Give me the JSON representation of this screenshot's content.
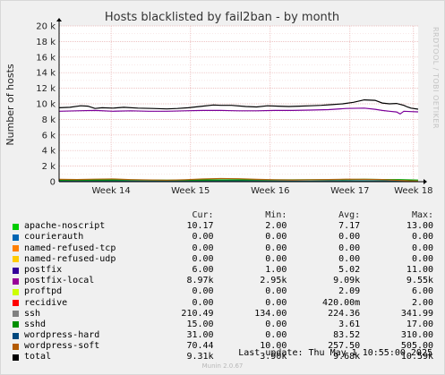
{
  "chart_data": {
    "type": "line",
    "title": "Hosts blacklisted by fail2ban - by month",
    "ylabel": "Number of hosts",
    "watermark": "RRDTOOL / TOBI OETIKER",
    "ylim": [
      0,
      20000
    ],
    "yticks": [
      0,
      2000,
      4000,
      6000,
      8000,
      10000,
      12000,
      14000,
      16000,
      18000,
      20000
    ],
    "ytick_labels": [
      "0",
      "2 k",
      "4 k",
      "6 k",
      "8 k",
      "10 k",
      "12 k",
      "14 k",
      "16 k",
      "18 k",
      "20 k"
    ],
    "xlim": [
      0,
      1
    ],
    "xticks": [
      {
        "label": "Week 14",
        "pos": 0.145
      },
      {
        "label": "Week 15",
        "pos": 0.366
      },
      {
        "label": "Week 16",
        "pos": 0.588
      },
      {
        "label": "Week 17",
        "pos": 0.81
      },
      {
        "label": "Week 18",
        "pos": 0.987
      }
    ],
    "grid": true,
    "series": [
      {
        "name": "total",
        "color": "#000000",
        "x": [
          0,
          0.03,
          0.06,
          0.08,
          0.1,
          0.12,
          0.15,
          0.18,
          0.22,
          0.26,
          0.3,
          0.33,
          0.36,
          0.4,
          0.43,
          0.45,
          0.48,
          0.52,
          0.55,
          0.58,
          0.61,
          0.64,
          0.67,
          0.7,
          0.73,
          0.76,
          0.79,
          0.82,
          0.85,
          0.88,
          0.9,
          0.92,
          0.94,
          0.96,
          0.97,
          0.98,
          1.0
        ],
        "y": [
          9500,
          9550,
          9750,
          9700,
          9400,
          9500,
          9450,
          9550,
          9450,
          9400,
          9350,
          9400,
          9500,
          9700,
          9850,
          9800,
          9800,
          9650,
          9600,
          9750,
          9700,
          9650,
          9700,
          9750,
          9800,
          9900,
          10000,
          10200,
          10500,
          10450,
          10100,
          10000,
          10050,
          9800,
          9600,
          9450,
          9310
        ]
      },
      {
        "name": "postfix-local",
        "color": "#7b0099",
        "x": [
          0,
          0.05,
          0.1,
          0.15,
          0.2,
          0.25,
          0.3,
          0.35,
          0.4,
          0.45,
          0.5,
          0.55,
          0.6,
          0.65,
          0.7,
          0.75,
          0.8,
          0.85,
          0.88,
          0.9,
          0.92,
          0.94,
          0.95,
          0.96,
          0.98,
          1.0
        ],
        "y": [
          9050,
          9100,
          9150,
          9050,
          9100,
          9050,
          9050,
          9100,
          9150,
          9150,
          9100,
          9100,
          9150,
          9150,
          9200,
          9250,
          9400,
          9450,
          9300,
          9150,
          9050,
          8950,
          8700,
          9050,
          9000,
          8970
        ]
      },
      {
        "name": "wordpress-soft",
        "color": "#b0630c",
        "x": [
          0,
          0.05,
          0.1,
          0.15,
          0.2,
          0.3,
          0.35,
          0.4,
          0.45,
          0.5,
          0.55,
          0.6,
          0.65,
          0.7,
          0.75,
          0.8,
          0.85,
          0.9,
          0.95,
          1.0
        ],
        "y": [
          300,
          280,
          320,
          350,
          270,
          200,
          250,
          350,
          400,
          380,
          300,
          250,
          220,
          250,
          280,
          320,
          300,
          280,
          150,
          70
        ]
      },
      {
        "name": "ssh",
        "color": "#00a000",
        "x": [
          0,
          0.1,
          0.2,
          0.3,
          0.4,
          0.5,
          0.6,
          0.7,
          0.8,
          0.85,
          0.9,
          0.95,
          1.0
        ],
        "y": [
          200,
          220,
          230,
          200,
          220,
          240,
          230,
          250,
          260,
          300,
          280,
          260,
          210
        ]
      },
      {
        "name": "wordpress-hard",
        "color": "#0d5d6e",
        "x": [
          0,
          0.1,
          0.2,
          0.3,
          0.4,
          0.5,
          0.6,
          0.7,
          0.8,
          0.9,
          1.0
        ],
        "y": [
          100,
          110,
          90,
          80,
          120,
          100,
          90,
          80,
          110,
          100,
          31
        ]
      }
    ]
  },
  "legend": {
    "headers": [
      "Cur:",
      "Min:",
      "Avg:",
      "Max:"
    ],
    "rows": [
      {
        "name": "apache-noscript",
        "color": "#00cc00",
        "cur": "10.17",
        "min": "2.00",
        "avg": "7.17",
        "max": "13.00"
      },
      {
        "name": "courierauth",
        "color": "#0066b3",
        "cur": "0.00",
        "min": "0.00",
        "avg": "0.00",
        "max": "0.00"
      },
      {
        "name": "named-refused-tcp",
        "color": "#ff8000",
        "cur": "0.00",
        "min": "0.00",
        "avg": "0.00",
        "max": "0.00"
      },
      {
        "name": "named-refused-udp",
        "color": "#ffcc00",
        "cur": "0.00",
        "min": "0.00",
        "avg": "0.00",
        "max": "0.00"
      },
      {
        "name": "postfix",
        "color": "#330099",
        "cur": "6.00",
        "min": "1.00",
        "avg": "5.02",
        "max": "11.00"
      },
      {
        "name": "postfix-local",
        "color": "#990099",
        "cur": "8.97k",
        "min": "2.95k",
        "avg": "9.09k",
        "max": "9.55k"
      },
      {
        "name": "proftpd",
        "color": "#ccff00",
        "cur": "0.00",
        "min": "0.00",
        "avg": "2.09",
        "max": "6.00"
      },
      {
        "name": "recidive",
        "color": "#ff0000",
        "cur": "0.00",
        "min": "0.00",
        "avg": "420.00m",
        "max": "2.00"
      },
      {
        "name": "ssh",
        "color": "#808080",
        "cur": "210.49",
        "min": "134.00",
        "avg": "224.36",
        "max": "341.99"
      },
      {
        "name": "sshd",
        "color": "#008f00",
        "cur": "15.00",
        "min": "0.00",
        "avg": "3.61",
        "max": "17.00"
      },
      {
        "name": "wordpress-hard",
        "color": "#00487d",
        "cur": "31.00",
        "min": "0.00",
        "avg": "83.52",
        "max": "310.00"
      },
      {
        "name": "wordpress-soft",
        "color": "#b35a00",
        "cur": "70.44",
        "min": "10.00",
        "avg": "257.50",
        "max": "505.00"
      },
      {
        "name": "total",
        "color": "#000000",
        "cur": "9.31k",
        "min": "3.90k",
        "avg": "9.68k",
        "max": "10.59k"
      }
    ]
  },
  "last_update": "Last update: Thu May  1 10:55:00 2025",
  "version": "Munin 2.0.67"
}
